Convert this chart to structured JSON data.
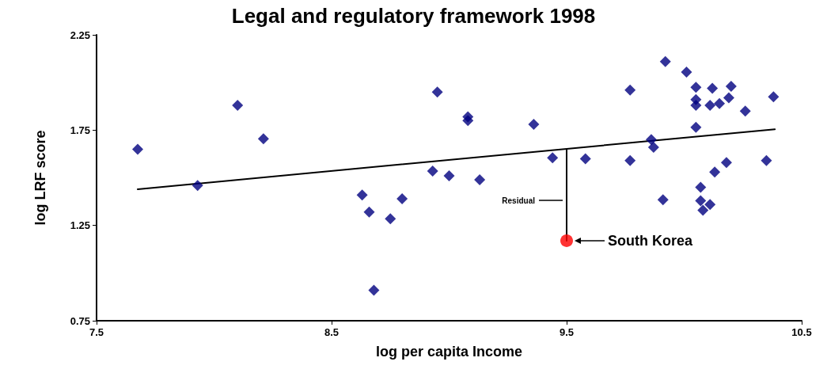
{
  "chart_data": {
    "type": "scatter",
    "title": "Legal and regulatory framework 1998",
    "xlabel": "log per capita Income",
    "ylabel": "log LRF score",
    "xlim": [
      7.5,
      10.5
    ],
    "xticks": [
      7.5,
      8.5,
      9.5,
      10.5
    ],
    "ylim": [
      0.75,
      2.25
    ],
    "yticks": [
      0.75,
      1.25,
      1.75,
      2.25
    ],
    "grid": false,
    "marker": "diamond",
    "series": [
      {
        "color": "#000080",
        "x": [
          7.675,
          7.93,
          8.1,
          8.21,
          8.63,
          8.66,
          8.75,
          8.68,
          8.8,
          8.93,
          8.95,
          9.0,
          9.08,
          9.08,
          9.13,
          9.36,
          9.44,
          9.58,
          9.77,
          9.77,
          9.86,
          9.87,
          9.91,
          9.92,
          10.01,
          10.05,
          10.05,
          10.05,
          10.05,
          10.07,
          10.07,
          10.08,
          10.11,
          10.12,
          10.11,
          10.15,
          10.13,
          10.18,
          10.2,
          10.19,
          10.26,
          10.35,
          10.38
        ],
        "values": [
          1.65,
          1.46,
          1.88,
          1.705,
          1.41,
          1.32,
          1.285,
          0.91,
          1.39,
          1.535,
          1.95,
          1.51,
          1.8,
          1.82,
          1.49,
          1.78,
          1.605,
          1.6,
          1.96,
          1.59,
          1.7,
          1.66,
          1.385,
          2.11,
          2.055,
          1.975,
          1.91,
          1.88,
          1.765,
          1.45,
          1.38,
          1.33,
          1.36,
          1.97,
          1.88,
          1.89,
          1.53,
          1.58,
          1.98,
          1.92,
          1.85,
          1.59,
          1.925
        ]
      },
      {
        "type": "line",
        "color": "#000000",
        "marker": "none",
        "x": [
          7.675,
          10.386
        ],
        "values": [
          1.44,
          1.755
        ]
      },
      {
        "type": "line",
        "color": "#000000",
        "marker": "none",
        "x": [
          9.5,
          9.5
        ],
        "values": [
          1.65,
          1.17
        ]
      },
      {
        "color": "#ff0000",
        "marker": "circle",
        "x": [
          9.5
        ],
        "values": [
          1.17
        ]
      }
    ],
    "annotations": [
      "Residual",
      "South Korea"
    ]
  }
}
